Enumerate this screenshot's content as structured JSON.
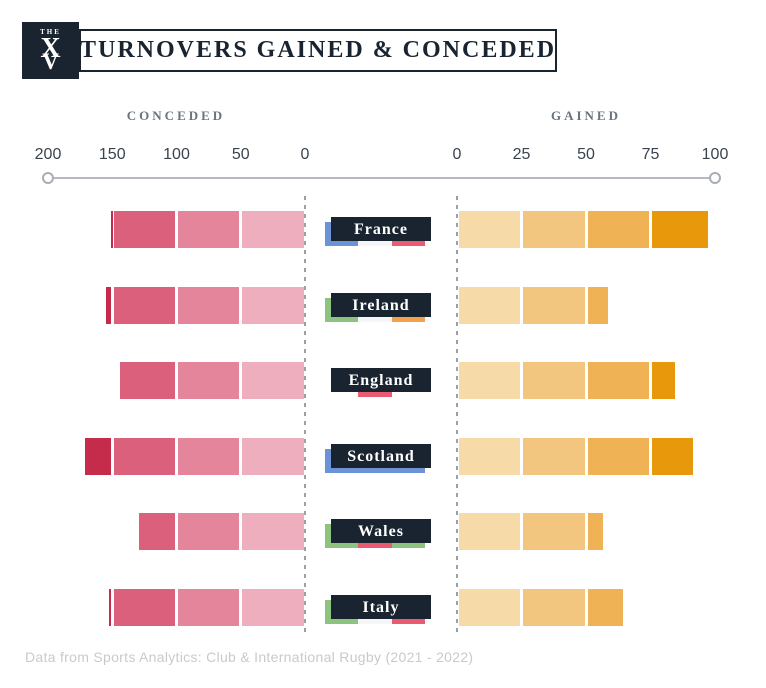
{
  "header": {
    "logo": {
      "top_text": "THE",
      "monogram_x": "X",
      "monogram_v": "V"
    },
    "title": "TURNOVERS GAINED & CONCEDED"
  },
  "axis": {
    "left_label": "CONCEDED",
    "right_label": "GAINED",
    "left_ticks": [
      200,
      150,
      100,
      50,
      0
    ],
    "right_ticks": [
      0,
      25,
      50,
      75,
      100
    ]
  },
  "chart_data": {
    "type": "bar",
    "variant": "diverging horizontal bars split into shaded step segments",
    "title": "TURNOVERS GAINED & CONCEDED",
    "categories": [
      "France",
      "Ireland",
      "England",
      "Scotland",
      "Wales",
      "Italy"
    ],
    "series": [
      {
        "name": "Conceded",
        "axis_side": "left",
        "axis_range": [
          0,
          200
        ],
        "segment_step": 50,
        "values": [
          152,
          156,
          145,
          172,
          130,
          154
        ],
        "segment_colors": [
          "#EFAEBD",
          "#E4859C",
          "#DA607C",
          "#C52B4B"
        ]
      },
      {
        "name": "Gained",
        "axis_side": "right",
        "axis_range": [
          0,
          100
        ],
        "segment_step": 25,
        "values": [
          98,
          59,
          85,
          92,
          57,
          65
        ],
        "segment_colors": [
          "#F6DBA8",
          "#F2C67E",
          "#EFB254",
          "#E8990B"
        ]
      }
    ],
    "legend": "none",
    "grid": "zero baselines only (dashed)"
  },
  "teams": [
    {
      "name": "France",
      "flag_stripes": [
        "#6B93D6",
        "#F4F6F8",
        "#EA5B72"
      ]
    },
    {
      "name": "Ireland",
      "flag_stripes": [
        "#8CC47F",
        "#F4F6F8",
        "#F2A24E"
      ]
    },
    {
      "name": "England",
      "flag_stripes": [
        "#FFFFFF",
        "#EA5B72",
        "#FFFFFF"
      ]
    },
    {
      "name": "Scotland",
      "flag_stripes": [
        "#6B93D6",
        "#6B93D6",
        "#6B93D6"
      ]
    },
    {
      "name": "Wales",
      "flag_stripes": [
        "#8CC47F",
        "#EA5B72",
        "#8CC47F"
      ]
    },
    {
      "name": "Italy",
      "flag_stripes": [
        "#8CC47F",
        "#F4F6F8",
        "#EA5B72"
      ]
    }
  ],
  "footer": {
    "source": "Data from Sports Analytics: Club & International Rugby (2021 - 2022)"
  }
}
